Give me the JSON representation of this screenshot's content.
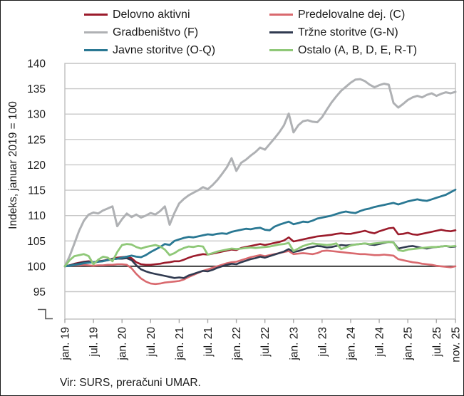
{
  "legend": {
    "items": [
      {
        "label": "Delovno aktivni",
        "color": "#9B1B2B",
        "series": "delovno_aktivni"
      },
      {
        "label": "Predelovalne dej. (C)",
        "color": "#D9696E",
        "series": "predelovalne"
      },
      {
        "label": "Gradbeništvo (F)",
        "color": "#AFB1B4",
        "series": "gradbenistvo"
      },
      {
        "label": "Tržne storitve (G-N)",
        "color": "#303A50",
        "series": "trzne"
      },
      {
        "label": "Javne storitve (O-Q)",
        "color": "#2A7893",
        "series": "javne"
      },
      {
        "label": "Ostalo (A, B, D, E, R-T)",
        "color": "#8FC878",
        "series": "ostalo"
      }
    ]
  },
  "y_axis": {
    "title": "Indeks, januar 2019 = 100",
    "tick_labels": [
      "140",
      "135",
      "130",
      "125",
      "120",
      "115",
      "110",
      "105",
      "100",
      "95"
    ],
    "tick_values": [
      140,
      135,
      130,
      125,
      120,
      115,
      110,
      105,
      100,
      95
    ],
    "baseline_value": 100,
    "has_axis_break": true
  },
  "x_axis": {
    "tick_labels": [
      "jan. 19",
      "jul. 19",
      "jan. 20",
      "jul. 20",
      "jan. 21",
      "jul. 21",
      "jan. 22",
      "jul. 22",
      "jan. 23",
      "jul. 23",
      "jan. 24",
      "jul. 24",
      "jan. 25",
      "jul. 25",
      "nov. 25"
    ],
    "tick_month_index": [
      0,
      6,
      12,
      18,
      24,
      30,
      36,
      42,
      48,
      54,
      60,
      66,
      72,
      78,
      82
    ]
  },
  "source": "Vir: SURS, preračuni UMAR.",
  "colors": {
    "grid": "#C8C8C8",
    "frame": "#BFBFBF",
    "baseline": "#3F3F3F",
    "tick": "#A8A8A8",
    "axis_break": "#595959",
    "text": "#1A1A1A"
  },
  "chart_data": {
    "type": "line",
    "title": "",
    "xlabel": "",
    "ylabel": "Indeks, januar 2019 = 100",
    "x_unit": "month",
    "x_start": "jan 2019",
    "x_end": "nov 2025",
    "n_points": 83,
    "ylim": [
      95,
      140
    ],
    "grid": true,
    "legend_position": "top",
    "series": [
      {
        "name": "Delovno aktivni",
        "key": "delovno_aktivni",
        "color": "#9B1B2B",
        "width": 2.6,
        "values": [
          100,
          100.2,
          100.5,
          100.7,
          100.9,
          101,
          100.8,
          101,
          101.1,
          101.3,
          101.5,
          101.7,
          101.8,
          101.9,
          101.6,
          100.8,
          100.4,
          100.3,
          100.3,
          100.4,
          100.5,
          100.7,
          100.8,
          101,
          101,
          101.3,
          101.7,
          102,
          102.2,
          102.4,
          102.3,
          102.5,
          102.7,
          102.9,
          103.1,
          103.3,
          103.2,
          103.6,
          103.8,
          104,
          104.2,
          104.4,
          104.2,
          104.4,
          104.6,
          104.8,
          105.1,
          105.7,
          104.9,
          105.1,
          105.3,
          105.5,
          105.7,
          105.9,
          106,
          106.1,
          106.2,
          106.4,
          106.5,
          106.4,
          106.4,
          106.6,
          106.8,
          107,
          106.7,
          106.5,
          106.9,
          107.2,
          107.5,
          107.6,
          106.3,
          106.4,
          106.6,
          106.3,
          106.2,
          106.4,
          106.6,
          106.8,
          107,
          107.2,
          107,
          106.9,
          107.1
        ]
      },
      {
        "name": "Predelovalne dej. (C)",
        "key": "predelovalne",
        "color": "#D9696E",
        "width": 2.6,
        "values": [
          100,
          100.1,
          100.2,
          100.2,
          100.3,
          100.2,
          100.1,
          100.2,
          100.2,
          100.3,
          100.3,
          100.4,
          100.4,
          100.3,
          99.6,
          98.5,
          97.6,
          97,
          96.6,
          96.5,
          96.6,
          96.8,
          96.9,
          97,
          97.1,
          97.4,
          97.9,
          98.3,
          98.7,
          99.1,
          99.4,
          99.7,
          100,
          100.3,
          100.6,
          100.8,
          100.9,
          101.2,
          101.5,
          101.8,
          102,
          102.2,
          102,
          102.2,
          102.4,
          102.6,
          102.8,
          103,
          102.4,
          102.5,
          102.6,
          102.5,
          102.4,
          102.6,
          103,
          103.1,
          103,
          102.9,
          102.8,
          102.7,
          102.6,
          102.5,
          102.4,
          102.4,
          102.3,
          102.2,
          102.2,
          102.3,
          102.2,
          102.1,
          101.4,
          101.2,
          101,
          100.8,
          100.7,
          100.5,
          100.4,
          100.3,
          100.1,
          100,
          99.9,
          99.8,
          100
        ]
      },
      {
        "name": "Gradbeništvo (F)",
        "key": "gradbenistvo",
        "color": "#AFB1B4",
        "width": 3,
        "values": [
          100,
          102,
          104.5,
          107,
          109,
          110.2,
          110.6,
          110.4,
          111,
          111.4,
          111.8,
          107.9,
          109.3,
          110.4,
          109.7,
          110.2,
          109.6,
          110,
          110.5,
          110.2,
          110.9,
          111.8,
          108.2,
          110.5,
          112.4,
          113.3,
          114,
          114.5,
          115,
          115.6,
          115.2,
          116,
          117,
          118.2,
          119.5,
          121.3,
          118.8,
          120.4,
          121,
          121.8,
          122.5,
          123.4,
          123,
          124.1,
          125.2,
          126.4,
          127.8,
          130.1,
          126.4,
          127.8,
          128.6,
          128.8,
          128.5,
          128.4,
          129.4,
          130.9,
          132.3,
          133.5,
          134.6,
          135.4,
          136.2,
          136.8,
          136.9,
          136.5,
          135.8,
          135.3,
          135.7,
          136,
          135.8,
          132.2,
          131.3,
          132,
          132.8,
          133.3,
          133.6,
          133.3,
          133.8,
          134.1,
          133.6,
          134,
          134.3,
          134.1,
          134.4
        ]
      },
      {
        "name": "Tržne storitve (G-N)",
        "key": "trzne",
        "color": "#303A50",
        "width": 2.6,
        "values": [
          100,
          100.2,
          100.4,
          100.6,
          100.8,
          100.9,
          100.7,
          100.9,
          101.1,
          101.2,
          101.4,
          101.5,
          101.5,
          101.6,
          101.2,
          100.2,
          99.4,
          99,
          98.7,
          98.5,
          98.3,
          98.1,
          97.9,
          97.7,
          97.8,
          97.7,
          98.2,
          98.5,
          98.8,
          99.1,
          99,
          99.3,
          99.7,
          100,
          100.3,
          100.5,
          100.4,
          100.8,
          101.1,
          101.4,
          101.6,
          101.9,
          101.7,
          102,
          102.3,
          102.6,
          102.9,
          103.4,
          102.8,
          103,
          103.3,
          103.6,
          103.8,
          104,
          103.9,
          103.7,
          103.8,
          104,
          104.2,
          104.1,
          104.2,
          104.3,
          104.4,
          104.5,
          104.3,
          104.2,
          104.4,
          104.6,
          104.8,
          104.7,
          103.5,
          103.7,
          103.9,
          104,
          103.8,
          103.6,
          103.5,
          103.7,
          103.8,
          103.9,
          104,
          103.8,
          103.9
        ]
      },
      {
        "name": "Javne storitve (O-Q)",
        "key": "javne",
        "color": "#2A7893",
        "width": 2.8,
        "values": [
          100,
          100.1,
          100.3,
          100.4,
          100.6,
          100.7,
          100.8,
          100.9,
          101,
          101.2,
          101.4,
          101.5,
          101.7,
          101.9,
          102.1,
          101.9,
          101.8,
          102.2,
          102.8,
          103.3,
          103.8,
          104.4,
          104.2,
          105,
          105.3,
          105.6,
          105.8,
          105.7,
          105.9,
          106.1,
          106.3,
          106.2,
          106.4,
          106.5,
          106.4,
          106.8,
          107,
          107.2,
          107.4,
          107.3,
          107.5,
          107.6,
          107.2,
          107.1,
          107.8,
          108.2,
          108.5,
          108.8,
          108.3,
          108.5,
          108.8,
          108.7,
          109,
          109.4,
          109.6,
          109.8,
          110,
          110.3,
          110.6,
          110.8,
          110.6,
          110.5,
          110.9,
          111.2,
          111.4,
          111.7,
          111.9,
          112.1,
          112.3,
          112.5,
          112.2,
          112.5,
          112.8,
          113,
          113.2,
          113,
          112.9,
          113.2,
          113.5,
          113.8,
          114.1,
          114.6,
          115.1
        ]
      },
      {
        "name": "Ostalo (A, B, D, E, R-T)",
        "key": "ostalo",
        "color": "#8FC878",
        "width": 2.8,
        "values": [
          100,
          101.2,
          102,
          102.2,
          102.4,
          102,
          100.4,
          101.3,
          101.9,
          101.7,
          101,
          102.8,
          104.2,
          104.4,
          104.3,
          103.8,
          103.5,
          103.8,
          104,
          104.2,
          103.9,
          103.3,
          102.2,
          102.6,
          103.2,
          103.6,
          103.9,
          103.8,
          104,
          103.9,
          102.3,
          102.6,
          102.9,
          103.1,
          103.3,
          103.5,
          103.4,
          103.5,
          103.6,
          103.7,
          103.6,
          103.7,
          103.8,
          103.9,
          104.1,
          104.3,
          104.4,
          104.6,
          103,
          103.5,
          104,
          104.3,
          104.5,
          104.4,
          104.3,
          104.2,
          104.3,
          104.5,
          103.4,
          103.7,
          104.1,
          104.3,
          104.4,
          104.5,
          104.4,
          104.5,
          104.6,
          104.7,
          104.8,
          104.7,
          103.2,
          103,
          103.3,
          103.4,
          103.5,
          103.6,
          103.7,
          103.8,
          103.8,
          103.9,
          104,
          103.9,
          104
        ]
      }
    ]
  }
}
